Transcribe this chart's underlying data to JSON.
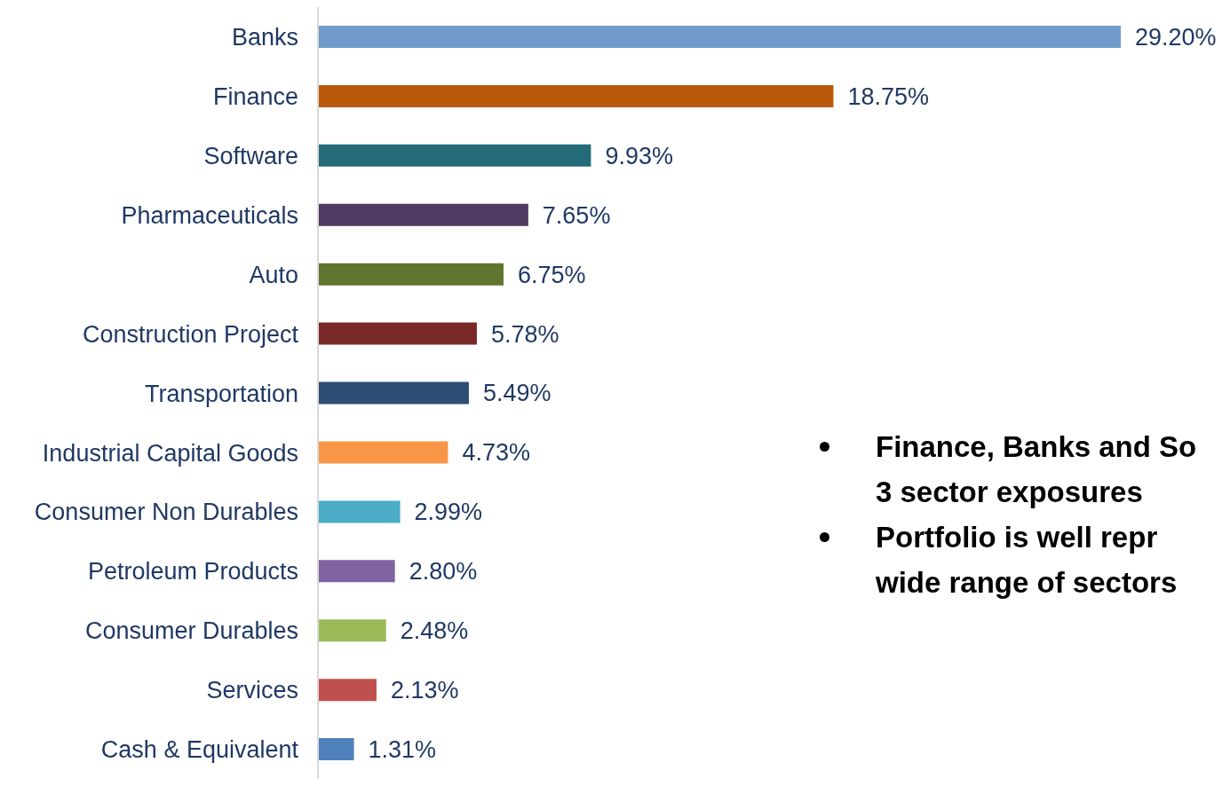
{
  "chart_data": {
    "type": "bar",
    "orientation": "horizontal",
    "categories": [
      "Banks",
      "Finance",
      "Software",
      "Pharmaceuticals",
      "Auto",
      "Construction Project",
      "Transportation",
      "Industrial Capital Goods",
      "Consumer Non Durables",
      "Petroleum Products",
      "Consumer Durables",
      "Services",
      "Cash & Equivalent"
    ],
    "values": [
      29.2,
      18.75,
      9.93,
      7.65,
      6.75,
      5.78,
      5.49,
      4.73,
      2.99,
      2.8,
      2.48,
      2.13,
      1.31
    ],
    "value_labels": [
      "29.20%",
      "18.75%",
      "9.93%",
      "7.65%",
      "6.75%",
      "5.78%",
      "5.49%",
      "4.73%",
      "2.99%",
      "2.80%",
      "2.48%",
      "2.13%",
      "1.31%"
    ],
    "colors": [
      "#729aca",
      "#b8590a",
      "#246b7a",
      "#4f3a62",
      "#5f7530",
      "#7a2929",
      "#2d4d75",
      "#f79646",
      "#4bacc6",
      "#8064a2",
      "#9bbb59",
      "#c0504d",
      "#4f81bd"
    ],
    "annotations": [
      "Finance, Banks and So\n3 sector exposures",
      "Portfolio is well repr\nwide range  of sectors"
    ]
  }
}
